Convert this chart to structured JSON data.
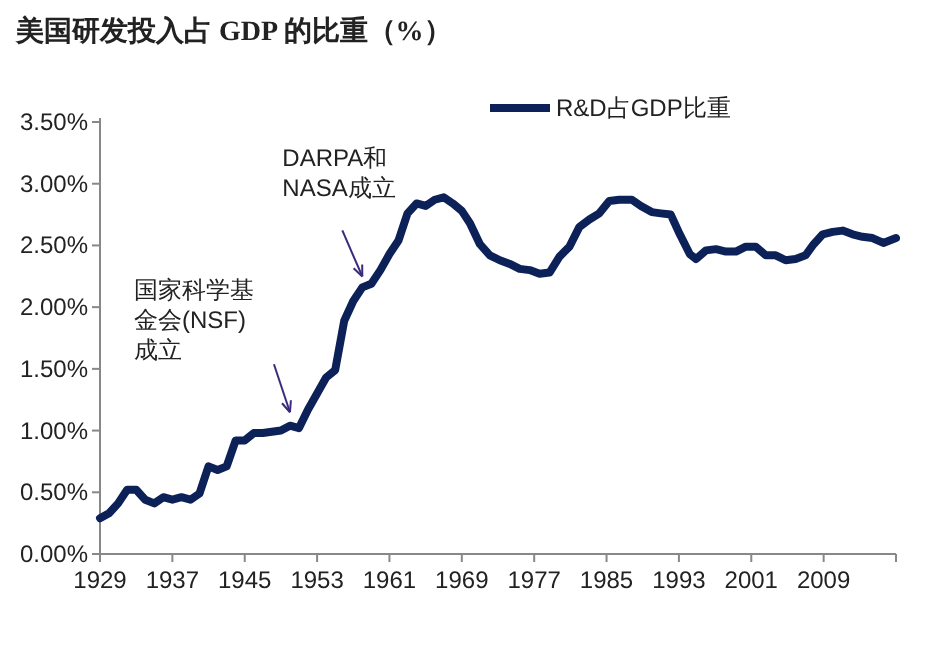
{
  "chart_data": {
    "type": "line",
    "title": "美国研发投入占 GDP 的比重（%）",
    "x": [
      1929,
      1930,
      1931,
      1932,
      1933,
      1934,
      1935,
      1936,
      1937,
      1938,
      1939,
      1940,
      1941,
      1942,
      1943,
      1944,
      1945,
      1946,
      1947,
      1948,
      1949,
      1950,
      1951,
      1952,
      1953,
      1954,
      1955,
      1956,
      1957,
      1958,
      1959,
      1960,
      1961,
      1962,
      1963,
      1964,
      1965,
      1966,
      1967,
      1968,
      1969,
      1969.9,
      1971.0,
      1972.1,
      1973.2,
      1974.3,
      1975.4,
      1976.5,
      1977.6,
      1978.7,
      1979.8,
      1980.9,
      1982.0,
      1983.1,
      1984.2,
      1985.3,
      1986.4,
      1987.8,
      1988.8,
      1990.0,
      1991.0,
      1992.1,
      1993.1,
      1994.2,
      1994.9,
      1996.0,
      1997.1,
      1998.2,
      1999.3,
      2000.4,
      2001.5,
      2002.6,
      2003.7,
      2004.8,
      2005.9,
      2007.0,
      2007.9,
      2008.9,
      2010.0,
      2011.1,
      2012.2,
      2013.3,
      2014.4,
      2015.6,
      2017.0
    ],
    "series": [
      {
        "name": "R&D占GDP比重",
        "color": "#0b2157",
        "values": [
          0.29,
          0.33,
          0.41,
          0.52,
          0.52,
          0.44,
          0.41,
          0.46,
          0.44,
          0.46,
          0.44,
          0.49,
          0.71,
          0.68,
          0.71,
          0.92,
          0.92,
          0.98,
          0.98,
          0.99,
          1.0,
          1.04,
          1.02,
          1.17,
          1.3,
          1.43,
          1.49,
          1.89,
          2.05,
          2.16,
          2.19,
          2.3,
          2.43,
          2.54,
          2.76,
          2.84,
          2.82,
          2.87,
          2.89,
          2.84,
          2.78,
          2.68,
          2.51,
          2.42,
          2.38,
          2.35,
          2.31,
          2.3,
          2.27,
          2.28,
          2.41,
          2.49,
          2.65,
          2.71,
          2.76,
          2.86,
          2.87,
          2.87,
          2.82,
          2.77,
          2.76,
          2.75,
          2.59,
          2.43,
          2.39,
          2.46,
          2.47,
          2.45,
          2.45,
          2.49,
          2.49,
          2.42,
          2.42,
          2.38,
          2.39,
          2.42,
          2.51,
          2.59,
          2.61,
          2.62,
          2.59,
          2.57,
          2.56,
          2.52,
          2.56
        ]
      }
    ],
    "xlim": [
      1929,
      2017
    ],
    "xticks": [
      1929,
      1937,
      1945,
      1953,
      1961,
      1969,
      1977,
      1985,
      1993,
      2001,
      2009,
      {
        "value": 2017,
        "label": null
      }
    ],
    "ylim": [
      0,
      3.5
    ],
    "yticks": [
      {
        "value": 0,
        "label": "0.00%"
      },
      {
        "value": 0.5,
        "label": "0.50%"
      },
      {
        "value": 1,
        "label": "1.00%"
      },
      {
        "value": 1.5,
        "label": "1.50%"
      },
      {
        "value": 2,
        "label": "2.00%"
      },
      {
        "value": 2.5,
        "label": "2.50%"
      },
      {
        "value": 3,
        "label": "3.00%"
      },
      {
        "value": 3.5,
        "label": "3.50%"
      }
    ],
    "annotations": [
      {
        "text": "DARPA和NASA成立",
        "x": 1958,
        "y": 2.2
      },
      {
        "text": "国家科学基金会(NSF)成立",
        "x": 1950,
        "y": 1.1
      }
    ],
    "legend": "top right",
    "grid": false,
    "marker": "none",
    "line_style": "solid"
  }
}
